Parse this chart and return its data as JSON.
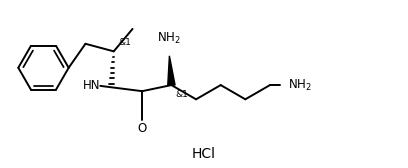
{
  "background_color": "#ffffff",
  "line_color": "#000000",
  "text_color": "#000000",
  "line_width": 1.4,
  "font_size": 8.5,
  "small_font_size": 6.5,
  "hcl_text": "HCl",
  "hcl_fontsize": 10,
  "figsize": [
    4.08,
    1.68
  ],
  "dpi": 100,
  "xlim": [
    0,
    10
  ],
  "ylim": [
    0,
    4.1
  ]
}
